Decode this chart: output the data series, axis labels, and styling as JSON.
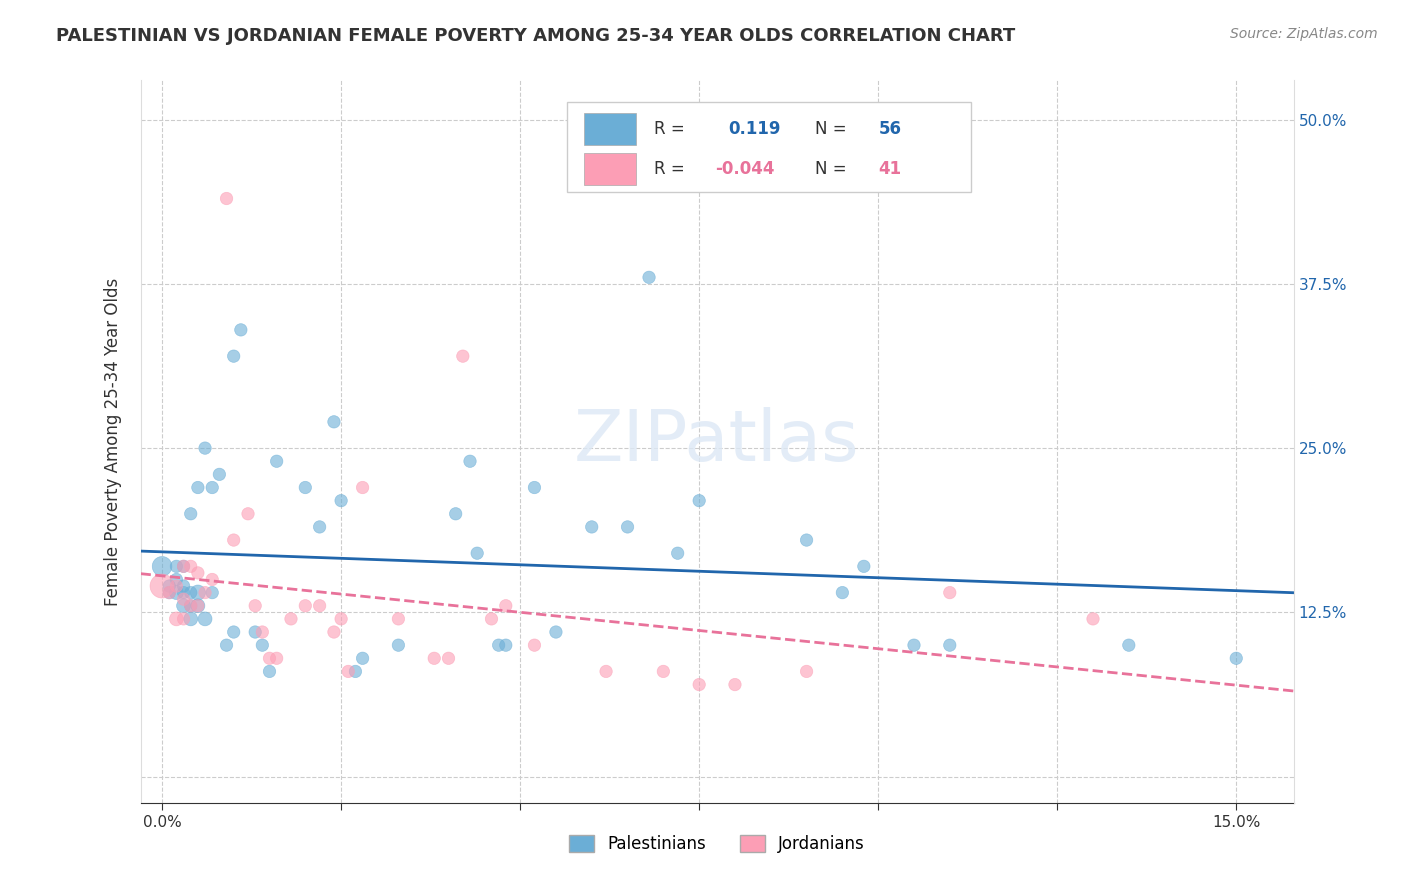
{
  "title": "PALESTINIAN VS JORDANIAN FEMALE POVERTY AMONG 25-34 YEAR OLDS CORRELATION CHART",
  "source": "Source: ZipAtlas.com",
  "xlabel_bottom": "",
  "ylabel": "Female Poverty Among 25-34 Year Olds",
  "x_ticks": [
    0.0,
    0.025,
    0.05,
    0.075,
    0.1,
    0.125,
    0.15
  ],
  "x_tick_labels": [
    "0.0%",
    "",
    "",
    "",
    "",
    "",
    "15.0%"
  ],
  "y_ticks": [
    0.0,
    0.125,
    0.25,
    0.375,
    0.5
  ],
  "y_tick_labels": [
    "",
    "12.5%",
    "25.0%",
    "37.5%",
    "50.0%"
  ],
  "xlim": [
    -0.003,
    0.158
  ],
  "ylim": [
    -0.02,
    0.53
  ],
  "palestinians_R": 0.119,
  "palestinians_N": 56,
  "jordanians_R": -0.044,
  "jordanians_N": 41,
  "blue_color": "#6baed6",
  "pink_color": "#fc9eb5",
  "blue_line_color": "#2166ac",
  "pink_line_color": "#e8729a",
  "watermark": "ZIPatlas",
  "legend_labels": [
    "Palestinians",
    "Jordanians"
  ],
  "palestinians_x": [
    0.0,
    0.001,
    0.001,
    0.002,
    0.002,
    0.002,
    0.003,
    0.003,
    0.003,
    0.003,
    0.004,
    0.004,
    0.004,
    0.004,
    0.005,
    0.005,
    0.005,
    0.006,
    0.006,
    0.007,
    0.007,
    0.008,
    0.009,
    0.01,
    0.01,
    0.011,
    0.013,
    0.014,
    0.015,
    0.016,
    0.02,
    0.022,
    0.024,
    0.025,
    0.027,
    0.028,
    0.033,
    0.041,
    0.043,
    0.044,
    0.047,
    0.048,
    0.052,
    0.055,
    0.06,
    0.065,
    0.068,
    0.072,
    0.075,
    0.09,
    0.095,
    0.098,
    0.105,
    0.11,
    0.135,
    0.15
  ],
  "palestinians_y": [
    0.16,
    0.14,
    0.145,
    0.14,
    0.15,
    0.16,
    0.13,
    0.14,
    0.145,
    0.16,
    0.12,
    0.13,
    0.14,
    0.2,
    0.13,
    0.14,
    0.22,
    0.12,
    0.25,
    0.14,
    0.22,
    0.23,
    0.1,
    0.11,
    0.32,
    0.34,
    0.11,
    0.1,
    0.08,
    0.24,
    0.22,
    0.19,
    0.27,
    0.21,
    0.08,
    0.09,
    0.1,
    0.2,
    0.24,
    0.17,
    0.1,
    0.1,
    0.22,
    0.11,
    0.19,
    0.19,
    0.38,
    0.17,
    0.21,
    0.18,
    0.14,
    0.16,
    0.1,
    0.1,
    0.1,
    0.09
  ],
  "palestinians_size": [
    200,
    80,
    80,
    100,
    80,
    80,
    100,
    80,
    80,
    80,
    100,
    80,
    80,
    80,
    100,
    120,
    80,
    100,
    80,
    80,
    80,
    80,
    80,
    80,
    80,
    80,
    80,
    80,
    80,
    80,
    80,
    80,
    80,
    80,
    80,
    80,
    80,
    80,
    80,
    80,
    80,
    80,
    80,
    80,
    80,
    80,
    80,
    80,
    80,
    80,
    80,
    80,
    80,
    80,
    80,
    80
  ],
  "jordanians_x": [
    0.0,
    0.001,
    0.002,
    0.002,
    0.003,
    0.003,
    0.003,
    0.004,
    0.004,
    0.005,
    0.005,
    0.006,
    0.007,
    0.009,
    0.01,
    0.012,
    0.013,
    0.014,
    0.015,
    0.016,
    0.018,
    0.02,
    0.022,
    0.024,
    0.025,
    0.026,
    0.028,
    0.033,
    0.038,
    0.04,
    0.042,
    0.046,
    0.048,
    0.052,
    0.062,
    0.07,
    0.075,
    0.08,
    0.09,
    0.11,
    0.13
  ],
  "jordanians_y": [
    0.145,
    0.14,
    0.12,
    0.145,
    0.12,
    0.135,
    0.16,
    0.13,
    0.16,
    0.13,
    0.155,
    0.14,
    0.15,
    0.44,
    0.18,
    0.2,
    0.13,
    0.11,
    0.09,
    0.09,
    0.12,
    0.13,
    0.13,
    0.11,
    0.12,
    0.08,
    0.22,
    0.12,
    0.09,
    0.09,
    0.32,
    0.12,
    0.13,
    0.1,
    0.08,
    0.08,
    0.07,
    0.07,
    0.08,
    0.14,
    0.12
  ],
  "jordanians_size": [
    300,
    80,
    100,
    80,
    80,
    80,
    80,
    80,
    80,
    80,
    80,
    80,
    80,
    80,
    80,
    80,
    80,
    80,
    80,
    80,
    80,
    80,
    80,
    80,
    80,
    80,
    80,
    80,
    80,
    80,
    80,
    80,
    80,
    80,
    80,
    80,
    80,
    80,
    80,
    80,
    80
  ]
}
